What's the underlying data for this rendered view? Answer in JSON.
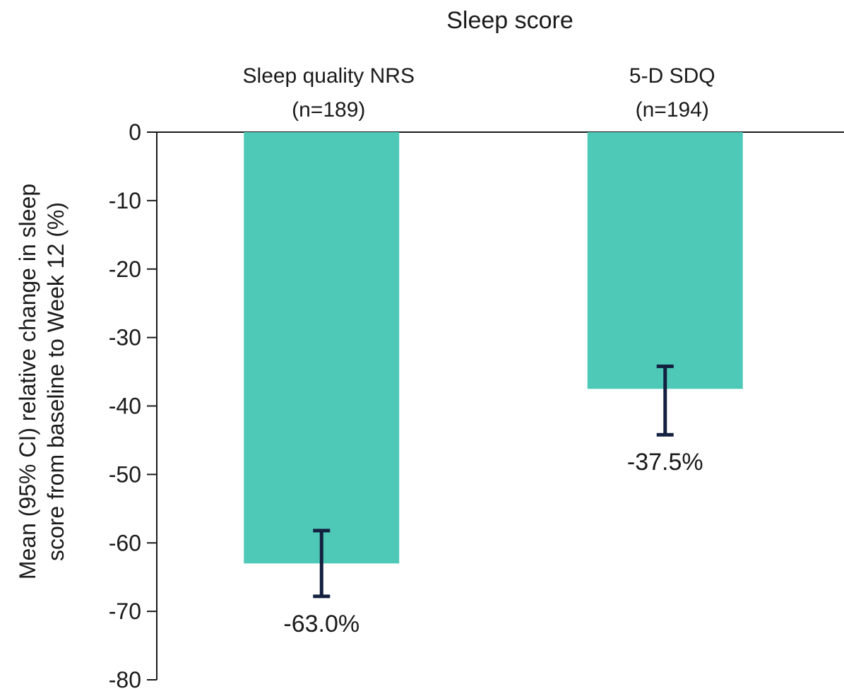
{
  "chart_data": {
    "type": "bar",
    "title": "Sleep score",
    "ylabel": [
      "Mean (95% CI) relative change in sleep",
      "score from baseline to Week 12 (%)"
    ],
    "ylim": [
      -80,
      0
    ],
    "yticks": [
      0,
      -10,
      -20,
      -30,
      -40,
      -50,
      -60,
      -70,
      -80
    ],
    "categories": [
      {
        "name": "Sleep quality NRS",
        "n": "(n=189)"
      },
      {
        "name": "5-D SDQ",
        "n": "(n=194)"
      }
    ],
    "values": [
      -63.0,
      -37.5
    ],
    "ci_lower": [
      -67.8,
      -44.2
    ],
    "ci_upper": [
      -58.2,
      -34.2
    ],
    "data_labels": [
      "-63.0%",
      "-37.5%"
    ],
    "bar_color": "#4ec9b8",
    "errorbar_color": "#14203f",
    "grid": false
  }
}
